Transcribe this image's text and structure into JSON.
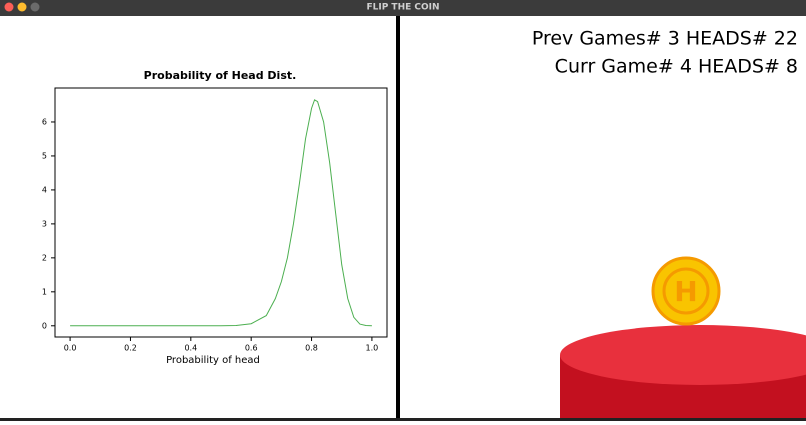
{
  "window": {
    "title": "FLIP THE COIN"
  },
  "scoreboard": {
    "previous": "Prev Games# 3 HEADS# 22",
    "current": "Curr Game# 4 HEADS# 8"
  },
  "coin": {
    "label": "H"
  },
  "chart_data": {
    "type": "line",
    "title": "Probability of Head Dist.",
    "x_label": "Probability of head",
    "color": "#4caf50",
    "x": [
      0,
      0.1,
      0.2,
      0.3,
      0.4,
      0.5,
      0.55,
      0.6,
      0.65,
      0.68,
      0.7,
      0.72,
      0.74,
      0.76,
      0.78,
      0.8,
      0.81,
      0.82,
      0.84,
      0.86,
      0.88,
      0.9,
      0.92,
      0.94,
      0.96,
      0.98,
      1.0
    ],
    "values": [
      0,
      0,
      0,
      0,
      0,
      0,
      0.01,
      0.06,
      0.3,
      0.8,
      1.3,
      2.0,
      3.0,
      4.2,
      5.5,
      6.4,
      6.65,
      6.6,
      6.0,
      4.8,
      3.3,
      1.8,
      0.8,
      0.25,
      0.05,
      0.01,
      0
    ],
    "xlim": [
      -0.05,
      1.05
    ],
    "ylim": [
      -0.33,
      7.0
    ],
    "xticks": [
      {
        "value": 0,
        "label": "0.0"
      },
      {
        "value": 0.2,
        "label": "0.2"
      },
      {
        "value": 0.4,
        "label": "0.4"
      },
      {
        "value": 0.6,
        "label": "0.6"
      },
      {
        "value": 0.8,
        "label": "0.8"
      },
      {
        "value": 1,
        "label": "1.0"
      }
    ],
    "yticks": [
      0,
      1,
      2,
      3,
      4,
      5,
      6
    ]
  }
}
